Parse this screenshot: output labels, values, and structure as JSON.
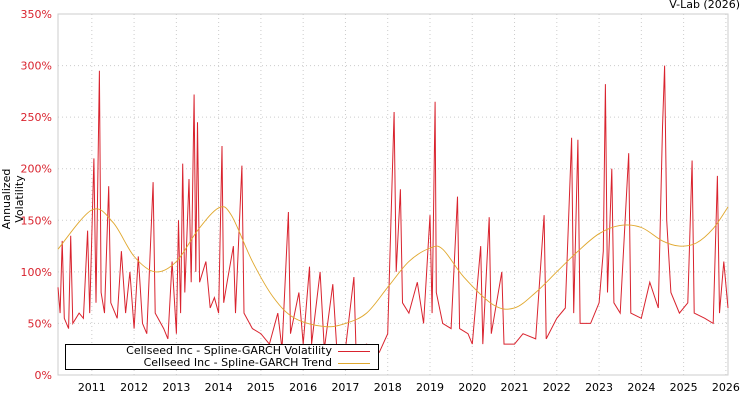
{
  "chart_data": {
    "type": "line",
    "credit": "V-Lab (2026)",
    "ylabel": "Annualized Volatility",
    "xlabel": "",
    "ylim": [
      0,
      350
    ],
    "xlim": [
      2010.2,
      2026.05
    ],
    "yticks": [
      "0%",
      "50%",
      "100%",
      "150%",
      "200%",
      "250%",
      "300%",
      "350%"
    ],
    "ytick_values": [
      0,
      50,
      100,
      150,
      200,
      250,
      300,
      350
    ],
    "xticks": [
      "2011",
      "2012",
      "2013",
      "2014",
      "2015",
      "2016",
      "2017",
      "2018",
      "2019",
      "2020",
      "2021",
      "2022",
      "2023",
      "2024",
      "2025",
      "2026"
    ],
    "grid": true,
    "legend_position": "bottom-left",
    "series": [
      {
        "name": "Cellseed Inc - Spline-GARCH Volatility",
        "color": "#d9232e",
        "x": [
          2010.2,
          2010.25,
          2010.3,
          2010.35,
          2010.45,
          2010.5,
          2010.55,
          2010.7,
          2010.8,
          2010.9,
          2010.95,
          2011.05,
          2011.1,
          2011.18,
          2011.22,
          2011.3,
          2011.4,
          2011.45,
          2011.6,
          2011.7,
          2011.8,
          2011.9,
          2012.0,
          2012.1,
          2012.2,
          2012.3,
          2012.45,
          2012.5,
          2012.7,
          2012.8,
          2012.9,
          2013.0,
          2013.05,
          2013.1,
          2013.15,
          2013.2,
          2013.3,
          2013.35,
          2013.42,
          2013.46,
          2013.5,
          2013.55,
          2013.7,
          2013.8,
          2013.9,
          2014.0,
          2014.08,
          2014.12,
          2014.2,
          2014.35,
          2014.4,
          2014.55,
          2014.6,
          2014.8,
          2015.0,
          2015.2,
          2015.4,
          2015.5,
          2015.65,
          2015.7,
          2015.9,
          2016.0,
          2016.15,
          2016.2,
          2016.4,
          2016.5,
          2016.7,
          2016.8,
          2017.0,
          2017.2,
          2017.25,
          2017.5,
          2017.8,
          2018.0,
          2018.15,
          2018.2,
          2018.3,
          2018.35,
          2018.5,
          2018.7,
          2018.85,
          2019.0,
          2019.05,
          2019.12,
          2019.15,
          2019.3,
          2019.5,
          2019.65,
          2019.7,
          2019.9,
          2020.0,
          2020.2,
          2020.25,
          2020.4,
          2020.45,
          2020.7,
          2020.75,
          2021.0,
          2021.2,
          2021.5,
          2021.7,
          2021.75,
          2022.0,
          2022.2,
          2022.35,
          2022.4,
          2022.5,
          2022.55,
          2022.8,
          2023.0,
          2023.1,
          2023.15,
          2023.2,
          2023.3,
          2023.35,
          2023.5,
          2023.7,
          2023.75,
          2024.0,
          2024.2,
          2024.4,
          2024.5,
          2024.55,
          2024.6,
          2024.7,
          2024.9,
          2025.1,
          2025.2,
          2025.25,
          2025.5,
          2025.7,
          2025.8,
          2025.85,
          2025.95,
          2026.05
        ],
        "y": [
          85,
          60,
          130,
          55,
          45,
          135,
          50,
          60,
          55,
          140,
          60,
          210,
          70,
          295,
          80,
          60,
          183,
          70,
          55,
          120,
          60,
          100,
          45,
          115,
          50,
          40,
          187,
          60,
          45,
          35,
          110,
          40,
          150,
          60,
          205,
          80,
          190,
          90,
          272,
          100,
          245,
          90,
          110,
          65,
          75,
          60,
          222,
          70,
          90,
          125,
          60,
          203,
          60,
          45,
          40,
          30,
          60,
          25,
          158,
          40,
          80,
          30,
          105,
          30,
          100,
          25,
          88,
          22,
          25,
          95,
          25,
          30,
          22,
          40,
          255,
          100,
          180,
          70,
          60,
          90,
          50,
          155,
          60,
          265,
          80,
          50,
          45,
          173,
          45,
          40,
          30,
          125,
          30,
          153,
          40,
          100,
          30,
          30,
          40,
          35,
          155,
          35,
          55,
          65,
          230,
          60,
          228,
          50,
          50,
          70,
          120,
          282,
          80,
          200,
          70,
          60,
          215,
          60,
          55,
          90,
          65,
          240,
          300,
          150,
          80,
          60,
          70,
          208,
          60,
          55,
          50,
          193,
          60,
          110,
          65
        ]
      },
      {
        "name": "Cellseed Inc - Spline-GARCH Trend",
        "color": "#e0a82e",
        "x": [
          2010.2,
          2011.0,
          2011.5,
          2012.0,
          2012.5,
          2013.0,
          2013.5,
          2014.0,
          2014.3,
          2014.8,
          2015.3,
          2015.8,
          2016.5,
          2017.0,
          2017.5,
          2018.0,
          2018.5,
          2019.0,
          2019.3,
          2019.8,
          2020.5,
          2021.0,
          2021.5,
          2022.0,
          2022.5,
          2023.0,
          2023.5,
          2024.0,
          2024.5,
          2024.9,
          2025.3,
          2025.7,
          2026.05
        ],
        "y": [
          122,
          160,
          148,
          115,
          100,
          110,
          140,
          162,
          155,
          110,
          75,
          55,
          47,
          50,
          60,
          85,
          110,
          123,
          122,
          95,
          68,
          65,
          80,
          100,
          120,
          137,
          145,
          143,
          130,
          125,
          128,
          142,
          163
        ]
      }
    ]
  }
}
